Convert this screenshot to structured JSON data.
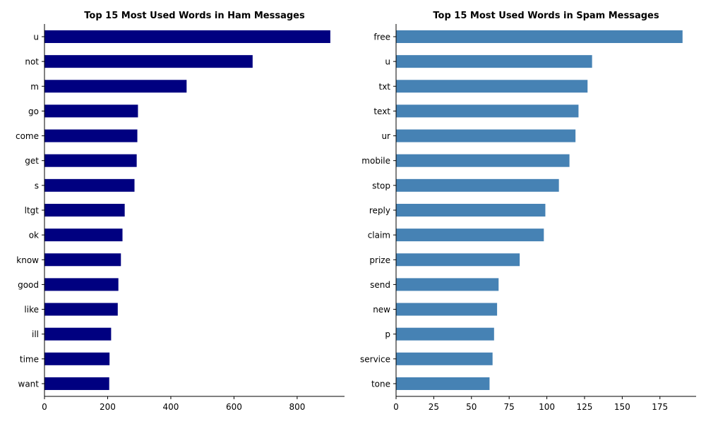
{
  "chart_data": [
    {
      "type": "bar",
      "orientation": "horizontal",
      "title": "Top 15 Most Used Words in Ham Messages",
      "xlabel": "",
      "ylabel": "",
      "color": "#000080",
      "categories": [
        "u",
        "not",
        "m",
        "go",
        "come",
        "get",
        "s",
        "ltgt",
        "ok",
        "know",
        "good",
        "like",
        "ill",
        "time",
        "want"
      ],
      "values": [
        905,
        659,
        450,
        296,
        294,
        292,
        285,
        254,
        247,
        242,
        234,
        232,
        211,
        206,
        205
      ],
      "xlim": [
        0,
        950
      ],
      "xticks": [
        0,
        200,
        400,
        600,
        800
      ],
      "grid": false
    },
    {
      "type": "bar",
      "orientation": "horizontal",
      "title": "Top 15 Most Used Words in Spam Messages",
      "xlabel": "",
      "ylabel": "",
      "color": "#4682b4",
      "categories": [
        "free",
        "u",
        "txt",
        "text",
        "ur",
        "mobile",
        "stop",
        "reply",
        "claim",
        "prize",
        "send",
        "new",
        "p",
        "service",
        "tone"
      ],
      "values": [
        190,
        130,
        127,
        121,
        119,
        115,
        108,
        99,
        98,
        82,
        68,
        67,
        65,
        64,
        62
      ],
      "xlim": [
        0,
        199
      ],
      "xticks": [
        0,
        25,
        50,
        75,
        100,
        125,
        150,
        175
      ],
      "grid": false
    }
  ]
}
